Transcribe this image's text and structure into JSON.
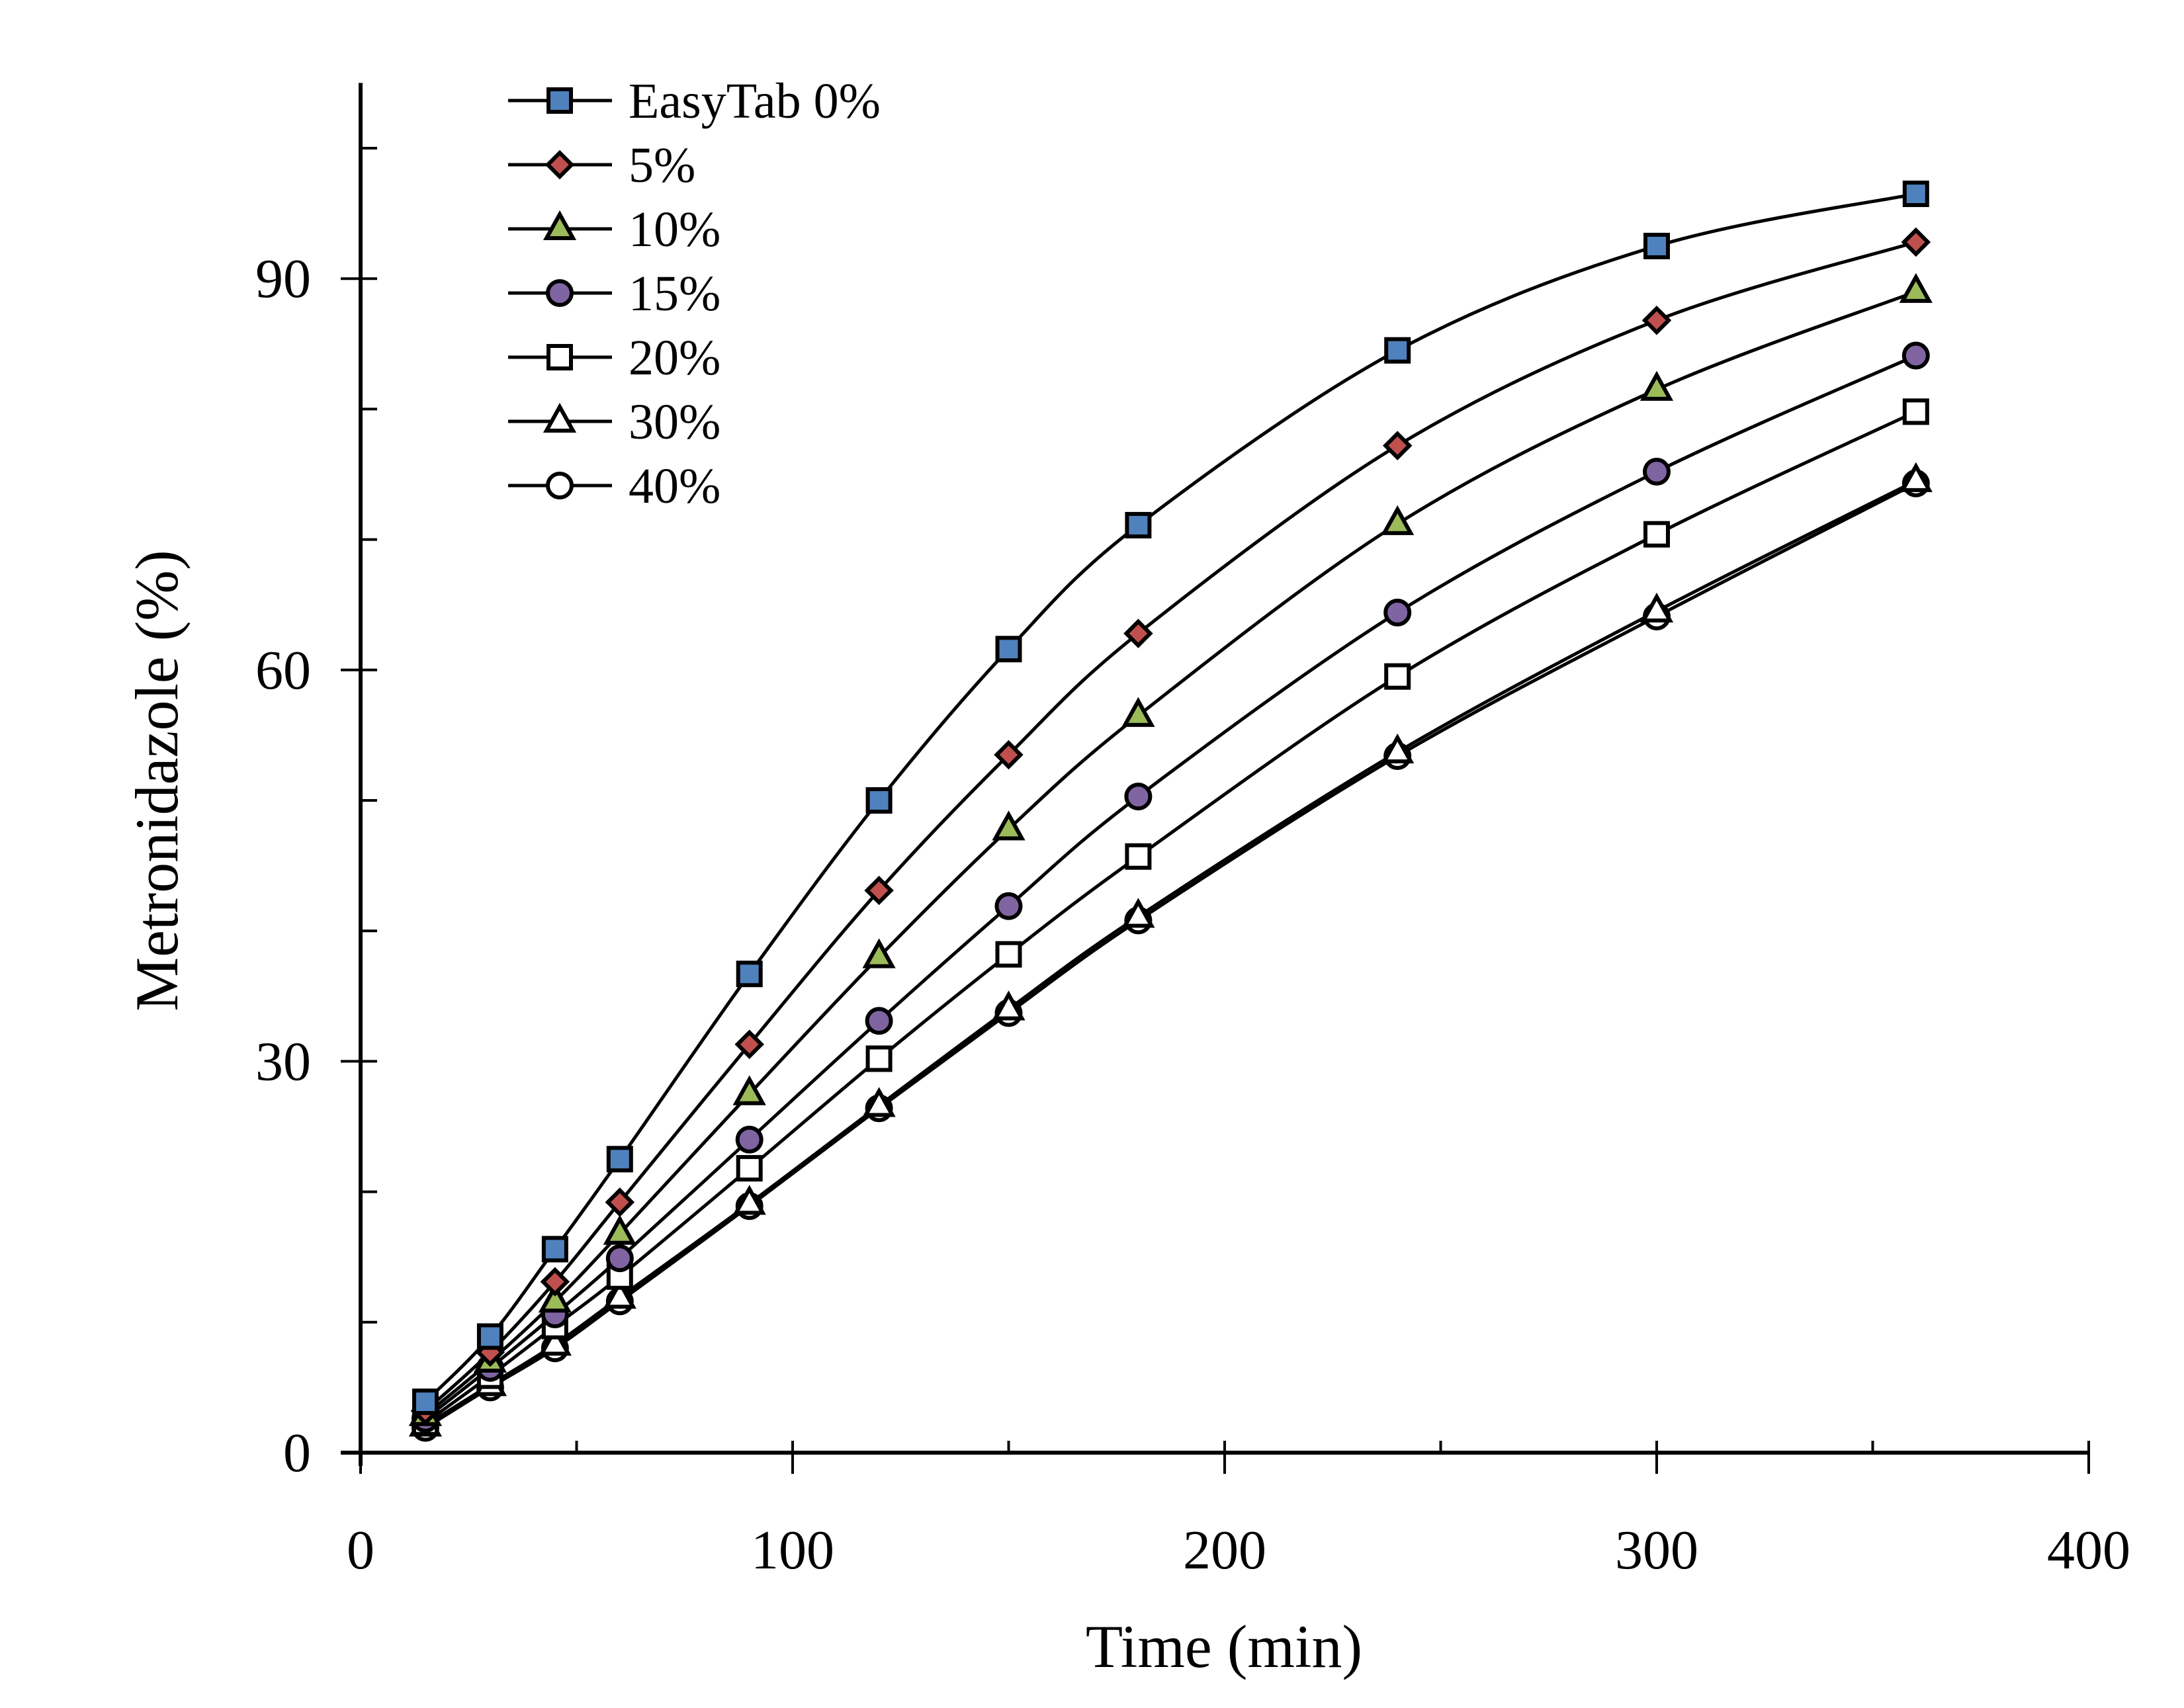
{
  "chart_data": {
    "type": "line",
    "title": "",
    "xlabel": "Time  (min)",
    "ylabel": "Metronidazole  (%)",
    "xlim": [
      0,
      400
    ],
    "ylim": [
      0,
      105
    ],
    "x_ticks": [
      0,
      100,
      200,
      300,
      400
    ],
    "x_minor_step": 50,
    "y_ticks": [
      0,
      30,
      60,
      90
    ],
    "y_minor_step": 10,
    "grid": false,
    "legend_position": "top-left",
    "x": [
      15,
      30,
      45,
      60,
      90,
      120,
      150,
      180,
      240,
      300,
      360
    ],
    "series": [
      {
        "name": "EasyTab 0%",
        "marker": "square",
        "fill": "#4F81BD",
        "values": [
          3.9,
          8.9,
          15.6,
          22.5,
          36.7,
          50.0,
          61.6,
          71.1,
          84.5,
          92.5,
          96.5
        ]
      },
      {
        "name": "5%",
        "marker": "diamond",
        "fill": "#C0504D",
        "values": [
          3.2,
          7.7,
          13.1,
          19.2,
          31.3,
          43.1,
          53.5,
          62.8,
          77.2,
          86.8,
          92.8
        ]
      },
      {
        "name": "10%",
        "marker": "triangle",
        "fill": "#9BBB59",
        "values": [
          2.9,
          7.0,
          11.6,
          16.8,
          27.5,
          38.0,
          47.8,
          56.5,
          71.2,
          81.5,
          89.0
        ]
      },
      {
        "name": "15%",
        "marker": "circle",
        "fill": "#8064A2",
        "values": [
          2.6,
          6.5,
          10.6,
          14.9,
          24.0,
          33.1,
          41.9,
          50.3,
          64.4,
          75.2,
          84.1
        ]
      },
      {
        "name": "20%",
        "marker": "square",
        "fill": "#FFFFFF",
        "values": [
          2.3,
          5.9,
          9.7,
          13.5,
          21.8,
          30.2,
          38.2,
          45.7,
          59.5,
          70.4,
          79.8
        ]
      },
      {
        "name": "30%",
        "marker": "triangle",
        "fill": "#FFFFFF",
        "values": [
          2.1,
          5.2,
          8.3,
          11.9,
          19.1,
          26.6,
          34.0,
          41.1,
          53.7,
          64.5,
          74.5
        ]
      },
      {
        "name": "40%",
        "marker": "circle",
        "fill": "#FFFFFF",
        "values": [
          1.9,
          5.0,
          8.0,
          11.6,
          18.9,
          26.4,
          33.7,
          40.8,
          53.4,
          64.1,
          74.3
        ]
      }
    ]
  }
}
